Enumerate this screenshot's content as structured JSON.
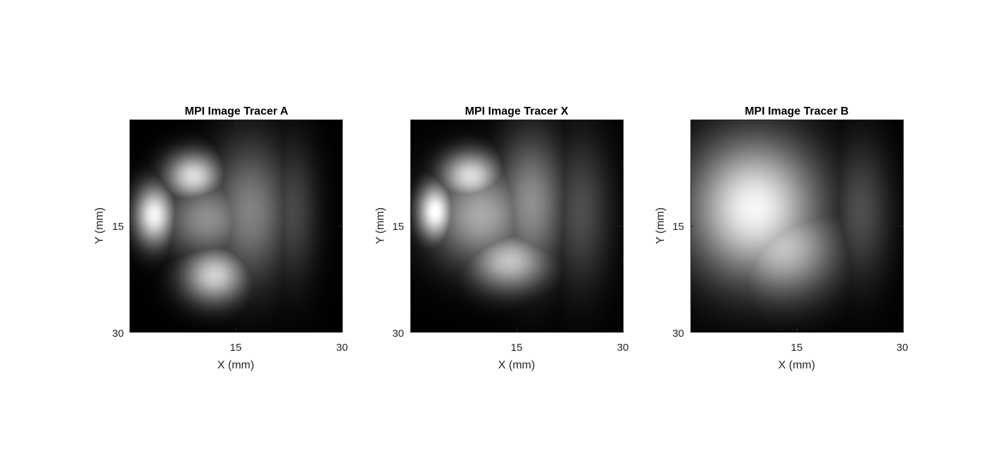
{
  "chart_data": [
    {
      "type": "heatmap",
      "title": "MPI Image Tracer A",
      "xlabel": "X (mm)",
      "ylabel": "Y (mm)",
      "xlim": [
        0,
        30
      ],
      "ylim": [
        0,
        30
      ],
      "y_direction": "down",
      "colormap": "gray",
      "x_ticks": [
        15,
        30
      ],
      "x_tick_labels": [
        "15",
        "30"
      ],
      "y_ticks": [
        15,
        30
      ],
      "y_tick_labels": [
        "15",
        "30"
      ],
      "features": [
        {
          "cx": 3.5,
          "cy": 13.5,
          "sx": 2.0,
          "sy": 3.0,
          "v": 0.95
        },
        {
          "cx": 9.0,
          "cy": 8.0,
          "sx": 2.8,
          "sy": 2.4,
          "v": 0.85
        },
        {
          "cx": 12.0,
          "cy": 22.0,
          "sx": 3.2,
          "sy": 2.8,
          "v": 0.8
        },
        {
          "cx": 11.0,
          "cy": 14.0,
          "sx": 4.5,
          "sy": 4.0,
          "v": 0.55
        },
        {
          "cx": 17.0,
          "cy": 13.0,
          "sx": 4.0,
          "sy": 7.0,
          "v": 0.5
        },
        {
          "cx": 23.0,
          "cy": 13.0,
          "sx": 2.5,
          "sy": 7.0,
          "v": 0.28
        }
      ]
    },
    {
      "type": "heatmap",
      "title": "MPI Image Tracer X",
      "xlabel": "X (mm)",
      "ylabel": "Y (mm)",
      "xlim": [
        0,
        30
      ],
      "ylim": [
        0,
        30
      ],
      "y_direction": "down",
      "colormap": "gray",
      "x_ticks": [
        15,
        30
      ],
      "x_tick_labels": [
        "15",
        "30"
      ],
      "y_ticks": [
        15,
        30
      ],
      "y_tick_labels": [
        "15",
        "30"
      ],
      "features": [
        {
          "cx": 3.5,
          "cy": 13.0,
          "sx": 1.8,
          "sy": 2.8,
          "v": 1.0
        },
        {
          "cx": 8.5,
          "cy": 8.0,
          "sx": 3.0,
          "sy": 2.5,
          "v": 0.85
        },
        {
          "cx": 14.0,
          "cy": 20.0,
          "sx": 4.0,
          "sy": 3.0,
          "v": 0.75
        },
        {
          "cx": 10.0,
          "cy": 13.5,
          "sx": 5.0,
          "sy": 5.0,
          "v": 0.65
        },
        {
          "cx": 17.0,
          "cy": 12.0,
          "sx": 3.5,
          "sy": 7.0,
          "v": 0.55
        },
        {
          "cx": 24.0,
          "cy": 13.0,
          "sx": 3.0,
          "sy": 7.5,
          "v": 0.3
        }
      ]
    },
    {
      "type": "heatmap",
      "title": "MPI Image Tracer B",
      "xlabel": "X (mm)",
      "ylabel": "Y (mm)",
      "xlim": [
        0,
        30
      ],
      "ylim": [
        0,
        30
      ],
      "y_direction": "down",
      "colormap": "gray",
      "x_ticks": [
        15,
        30
      ],
      "x_tick_labels": [
        "15",
        "30"
      ],
      "y_ticks": [
        15,
        30
      ],
      "y_tick_labels": [
        "15",
        "30"
      ],
      "features": [
        {
          "cx": 9.0,
          "cy": 12.5,
          "sx": 6.5,
          "sy": 7.0,
          "v": 0.95
        },
        {
          "cx": 13.0,
          "cy": 18.0,
          "sx": 5.5,
          "sy": 5.0,
          "v": 0.75
        },
        {
          "cx": 24.0,
          "cy": 13.0,
          "sx": 3.0,
          "sy": 7.0,
          "v": 0.3
        }
      ]
    }
  ]
}
